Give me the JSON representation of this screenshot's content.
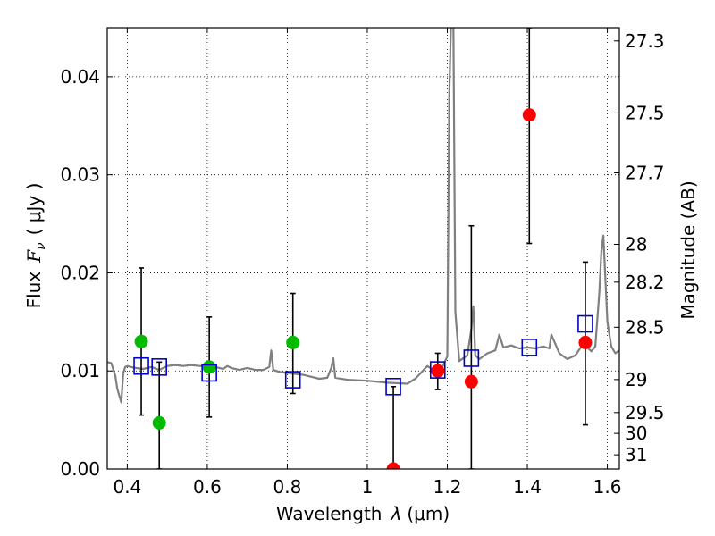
{
  "chart_data": {
    "type": "scatter",
    "xlabel_text": "Wavelength",
    "xlabel_symbol": "λ",
    "xlabel_unit": "(μm)",
    "ylabel_text": "Flux",
    "ylabel_symbol": "F",
    "ylabel_subscript": "ν",
    "ylabel_unit": "( μJy )",
    "y2label": "Magnitude (AB)",
    "xlim": [
      0.35,
      1.63
    ],
    "ylim": [
      0.0,
      0.045
    ],
    "grid": true,
    "x_ticks": [
      {
        "value": 0.4,
        "label": "0.4"
      },
      {
        "value": 0.6,
        "label": "0.6"
      },
      {
        "value": 0.8,
        "label": "0.8"
      },
      {
        "value": 1.0,
        "label": "1"
      },
      {
        "value": 1.2,
        "label": "1.2"
      },
      {
        "value": 1.4,
        "label": "1.4"
      },
      {
        "value": 1.6,
        "label": "1.6"
      }
    ],
    "y_ticks": [
      {
        "value": 0.0,
        "label": "0.00"
      },
      {
        "value": 0.01,
        "label": "0.01"
      },
      {
        "value": 0.02,
        "label": "0.02"
      },
      {
        "value": 0.03,
        "label": "0.03"
      },
      {
        "value": 0.04,
        "label": "0.04"
      }
    ],
    "mag_ticks": [
      {
        "mag": 27.3,
        "label": "27.3"
      },
      {
        "mag": 27.5,
        "label": "27.5"
      },
      {
        "mag": 27.7,
        "label": "27.7"
      },
      {
        "mag": 28.0,
        "label": "28"
      },
      {
        "mag": 28.2,
        "label": "28.2"
      },
      {
        "mag": 28.5,
        "label": "28.5"
      },
      {
        "mag": 29.0,
        "label": "29"
      },
      {
        "mag": 29.5,
        "label": "29.5"
      },
      {
        "mag": 30.0,
        "label": "30"
      },
      {
        "mag": 31.0,
        "label": "31"
      }
    ],
    "colors": {
      "green": "#00bb00",
      "red": "#ff0000",
      "blue": "#0000cc",
      "model": "#808080",
      "grid": "#000000"
    },
    "model_spectrum": {
      "x": [
        0.35,
        0.36,
        0.37,
        0.375,
        0.38,
        0.385,
        0.39,
        0.395,
        0.4,
        0.42,
        0.44,
        0.46,
        0.48,
        0.5,
        0.52,
        0.54,
        0.56,
        0.58,
        0.6,
        0.62,
        0.64,
        0.65,
        0.66,
        0.68,
        0.7,
        0.72,
        0.74,
        0.755,
        0.76,
        0.765,
        0.78,
        0.8,
        0.82,
        0.84,
        0.86,
        0.88,
        0.9,
        0.91,
        0.915,
        0.92,
        0.95,
        1.0,
        1.05,
        1.1,
        1.12,
        1.15,
        1.18,
        1.2,
        1.205,
        1.21,
        1.215,
        1.22,
        1.23,
        1.25,
        1.26,
        1.265,
        1.27,
        1.28,
        1.3,
        1.32,
        1.33,
        1.34,
        1.36,
        1.38,
        1.4,
        1.42,
        1.44,
        1.455,
        1.46,
        1.48,
        1.5,
        1.52,
        1.54,
        1.56,
        1.57,
        1.58,
        1.585,
        1.59,
        1.6,
        1.61,
        1.62,
        1.63
      ],
      "y": [
        0.0109,
        0.0108,
        0.0095,
        0.0082,
        0.0075,
        0.0068,
        0.0098,
        0.0104,
        0.0105,
        0.0103,
        0.0102,
        0.0104,
        0.0101,
        0.0105,
        0.0106,
        0.0105,
        0.0106,
        0.0105,
        0.0105,
        0.0104,
        0.0102,
        0.0105,
        0.0103,
        0.0101,
        0.0103,
        0.0101,
        0.0101,
        0.0104,
        0.0121,
        0.0101,
        0.0099,
        0.0098,
        0.0097,
        0.0096,
        0.0094,
        0.0092,
        0.0093,
        0.0103,
        0.0113,
        0.0093,
        0.0091,
        0.009,
        0.0088,
        0.0087,
        0.0092,
        0.0105,
        0.0097,
        0.0115,
        0.038,
        0.047,
        0.047,
        0.016,
        0.011,
        0.0116,
        0.0143,
        0.0166,
        0.0116,
        0.0112,
        0.0118,
        0.0121,
        0.0137,
        0.0124,
        0.0126,
        0.0123,
        0.0124,
        0.0123,
        0.0125,
        0.0123,
        0.0137,
        0.0118,
        0.0112,
        0.0116,
        0.0128,
        0.012,
        0.0125,
        0.018,
        0.0222,
        0.0238,
        0.015,
        0.0125,
        0.0118,
        0.0121
      ]
    },
    "series": [
      {
        "name": "green-points",
        "marker": "circle",
        "color": "green",
        "points": [
          {
            "x": 0.435,
            "y": 0.013,
            "err_lo": 0.0055,
            "err_hi": 0.0205
          },
          {
            "x": 0.48,
            "y": 0.0047,
            "err_lo": 0.0,
            "err_hi": 0.0109
          },
          {
            "x": 0.605,
            "y": 0.0104,
            "err_lo": 0.0053,
            "err_hi": 0.0155
          },
          {
            "x": 0.814,
            "y": 0.0129,
            "err_lo": 0.0077,
            "err_hi": 0.0179
          }
        ]
      },
      {
        "name": "red-points",
        "marker": "circle",
        "color": "red",
        "points": [
          {
            "x": 1.065,
            "y": 0.0,
            "err_lo": 0.0,
            "err_hi": 0.0084
          },
          {
            "x": 1.176,
            "y": 0.01,
            "err_lo": 0.0081,
            "err_hi": 0.0118
          },
          {
            "x": 1.26,
            "y": 0.0089,
            "err_lo": 0.0,
            "err_hi": 0.0248
          },
          {
            "x": 1.405,
            "y": 0.0361,
            "err_lo": 0.023,
            "err_hi": 0.045
          },
          {
            "x": 1.545,
            "y": 0.0129,
            "err_lo": 0.0045,
            "err_hi": 0.0211
          }
        ]
      },
      {
        "name": "model-bandpass",
        "marker": "square",
        "color": "blue",
        "points": [
          {
            "x": 0.435,
            "y": 0.0105
          },
          {
            "x": 0.48,
            "y": 0.0104
          },
          {
            "x": 0.605,
            "y": 0.0098
          },
          {
            "x": 0.814,
            "y": 0.0091
          },
          {
            "x": 1.065,
            "y": 0.0084
          },
          {
            "x": 1.176,
            "y": 0.0101
          },
          {
            "x": 1.26,
            "y": 0.0113
          },
          {
            "x": 1.405,
            "y": 0.0124
          },
          {
            "x": 1.545,
            "y": 0.0148
          }
        ]
      }
    ]
  }
}
